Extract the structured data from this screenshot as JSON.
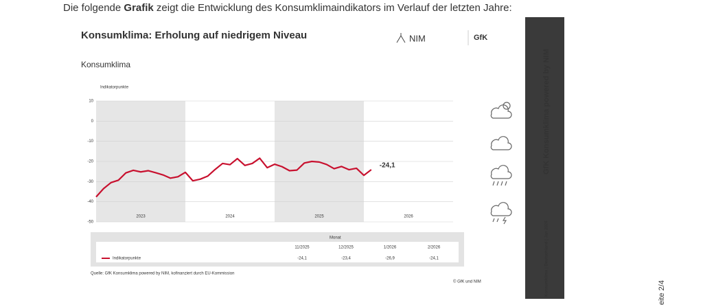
{
  "intro": [
    "Die folgende ",
    "Grafik",
    " zeigt die Entwicklung des Konsumklimaindikators im Verlauf der letzten Jahre:"
  ],
  "chart_data": {
    "type": "line",
    "title": "Konsumklima: Erholung auf niedrigem Niveau",
    "subtitle": "Konsumklima",
    "y_label": "Indikatorpunkte",
    "logos": [
      "NIM",
      "GfK"
    ],
    "x": [
      2023,
      2023.083,
      2023.167,
      2023.25,
      2023.333,
      2023.417,
      2023.5,
      2023.583,
      2023.667,
      2023.75,
      2023.833,
      2023.917,
      2024,
      2024.083,
      2024.167,
      2024.25,
      2024.333,
      2024.417,
      2024.5,
      2024.583,
      2024.667,
      2024.75,
      2024.833,
      2024.917,
      2025,
      2025.083,
      2025.167,
      2025.25,
      2025.333,
      2025.417,
      2025.5,
      2025.583,
      2025.667,
      2025.75,
      2025.833,
      2025.917,
      2026,
      2026.083
    ],
    "series": [
      {
        "name": "Indikatorpunkte",
        "color": "#c8102e",
        "values": [
          -37.6,
          -33.5,
          -30.5,
          -29.3,
          -25.7,
          -24.4,
          -25.2,
          -24.6,
          -25.6,
          -26.7,
          -28.3,
          -27.6,
          -25.4,
          -29.6,
          -28.8,
          -27.3,
          -24.0,
          -21.0,
          -21.6,
          -18.6,
          -22.0,
          -21.0,
          -18.4,
          -23.1,
          -21.4,
          -22.6,
          -24.6,
          -24.3,
          -20.8,
          -20.0,
          -20.3,
          -21.5,
          -23.6,
          -22.5,
          -24.1,
          -23.4,
          -26.9,
          -24.1
        ],
        "value_labels": [
          null,
          null,
          null,
          null,
          null,
          null,
          null,
          null,
          null,
          null,
          null,
          null,
          null,
          null,
          null,
          null,
          null,
          null,
          null,
          null,
          null,
          null,
          null,
          null,
          null,
          null,
          null,
          null,
          null,
          null,
          null,
          null,
          null,
          null,
          null,
          null,
          null,
          "-24,1"
        ]
      }
    ],
    "xlim": [
      2023,
      2027
    ],
    "xticks": [
      {
        "value": 2023.5,
        "label": "2023"
      },
      {
        "value": 2024.5,
        "label": "2024"
      },
      {
        "value": 2025.5,
        "label": "2025"
      },
      {
        "value": 2026.5,
        "label": "2026"
      }
    ],
    "ylim": [
      -50,
      10
    ],
    "yticks": [
      -50,
      -40,
      -30,
      -20,
      -10,
      0,
      10
    ],
    "grid": true,
    "table": {
      "header": "Monat",
      "columns": [
        "11/2025",
        "12/2025",
        "1/2026",
        "2/2026"
      ],
      "cells": [
        "-24,1",
        "-23,4",
        "-26,9",
        "-24,1"
      ]
    },
    "source": "Quelle: GfK Konsumklima powered by NIM, kofinanziert durch EU-Kommission",
    "copyright": "© GfK und NIM"
  },
  "sidebar": {
    "small": "Konsumklima | Deutschland | Jan 2026",
    "large": "GfK Konsumklima powered by NIM"
  },
  "page_number": "eite 2/4"
}
